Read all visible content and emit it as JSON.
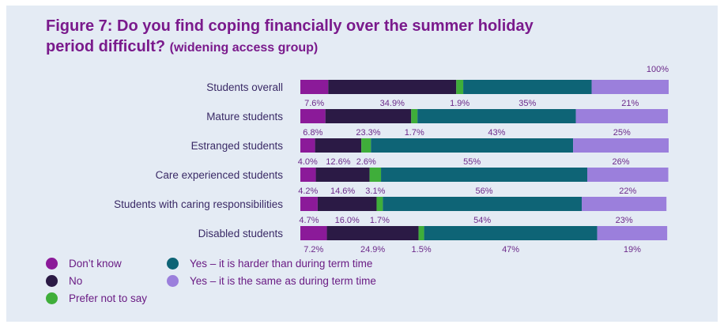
{
  "title": {
    "main": "Figure 7: Do you find coping financially over the summer holiday period difficult?",
    "sub": "(widening access group)"
  },
  "chart_data": {
    "type": "bar",
    "orientation": "horizontal-stacked",
    "total_label": "100%",
    "xlim": [
      0,
      100
    ],
    "categories": [
      "Students overall",
      "Mature students",
      "Estranged students",
      "Care experienced students",
      "Students with caring responsibilities",
      "Disabled students"
    ],
    "series": [
      {
        "name": "Don’t know",
        "color": "#8b1a99",
        "values": [
          7.6,
          6.8,
          4.0,
          4.2,
          4.7,
          7.2
        ],
        "labels": [
          "7.6%",
          "6.8%",
          "4.0%",
          "4.2%",
          "4.7%",
          "7.2%"
        ]
      },
      {
        "name": "No",
        "color": "#2b1a45",
        "values": [
          34.9,
          23.3,
          12.6,
          14.6,
          16.0,
          24.9
        ],
        "labels": [
          "34.9%",
          "23.3%",
          "12.6%",
          "14.6%",
          "16.0%",
          "24.9%"
        ]
      },
      {
        "name": "Prefer not to say",
        "color": "#3fae3a",
        "values": [
          1.9,
          1.7,
          2.6,
          3.1,
          1.7,
          1.5
        ],
        "labels": [
          "1.9%",
          "1.7%",
          "2.6%",
          "3.1%",
          "1.7%",
          "1.5%"
        ]
      },
      {
        "name": "Yes – it is harder than during term time",
        "color": "#0e6476",
        "values": [
          35,
          43,
          55,
          56,
          54,
          47
        ],
        "labels": [
          "35%",
          "43%",
          "55%",
          "56%",
          "54%",
          "47%"
        ]
      },
      {
        "name": "Yes – it is the same as during term time",
        "color": "#9b7fdc",
        "values": [
          21,
          25,
          26,
          22,
          23,
          19
        ],
        "labels": [
          "21%",
          "25%",
          "26%",
          "22%",
          "23%",
          "19%"
        ]
      }
    ],
    "legend_position": "bottom-left"
  }
}
